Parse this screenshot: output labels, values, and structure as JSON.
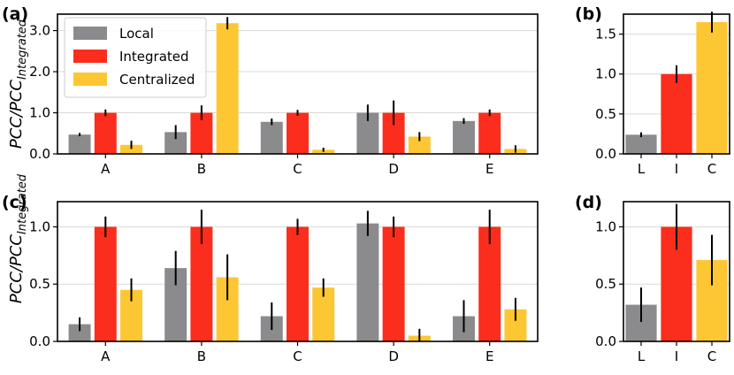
{
  "figure": {
    "ylabel_main": "PCC/PCC",
    "ylabel_sub": "Integrated"
  },
  "colors": {
    "Local": "#8b8b8e",
    "Integrated": "#fb2d1c",
    "Centralized": "#fdc633"
  },
  "chart_data": [
    {
      "panel": "(a)",
      "type": "bar",
      "categories": [
        "A",
        "B",
        "C",
        "D",
        "E"
      ],
      "ylim": [
        0,
        3.4
      ],
      "yticks": [
        0.0,
        1.0,
        2.0,
        3.0
      ],
      "ytick_labels": [
        "0.0",
        "1.0",
        "2.0",
        "3.0"
      ],
      "grid": true,
      "legend": "top-left",
      "series": [
        {
          "name": "Local",
          "values": [
            0.47,
            0.53,
            0.78,
            1.0,
            0.8
          ],
          "errors": [
            0.04,
            0.17,
            0.08,
            0.2,
            0.07
          ]
        },
        {
          "name": "Integrated",
          "values": [
            1.0,
            1.0,
            1.0,
            1.0,
            1.0
          ],
          "errors": [
            0.08,
            0.18,
            0.07,
            0.3,
            0.08
          ]
        },
        {
          "name": "Centralized",
          "values": [
            0.22,
            3.18,
            0.1,
            0.42,
            0.12
          ],
          "errors": [
            0.1,
            0.15,
            0.05,
            0.11,
            0.09
          ]
        }
      ]
    },
    {
      "panel": "(b)",
      "type": "bar",
      "categories": [
        "L",
        "I",
        "C"
      ],
      "ylim": [
        0,
        1.75
      ],
      "yticks": [
        0.0,
        0.5,
        1.0,
        1.5
      ],
      "ytick_labels": [
        "0.0",
        "0.5",
        "1.0",
        "1.5"
      ],
      "grid": true,
      "values": [
        0.24,
        1.0,
        1.65
      ],
      "errors": [
        0.03,
        0.11,
        0.13
      ],
      "bar_colors": [
        "Local",
        "Integrated",
        "Centralized"
      ]
    },
    {
      "panel": "(c)",
      "type": "bar",
      "categories": [
        "A",
        "B",
        "C",
        "D",
        "E"
      ],
      "ylim": [
        0,
        1.22
      ],
      "yticks": [
        0.0,
        0.5,
        1.0
      ],
      "ytick_labels": [
        "0.0",
        "0.5",
        "1.0"
      ],
      "grid": true,
      "series": [
        {
          "name": "Local",
          "values": [
            0.15,
            0.64,
            0.22,
            1.03,
            0.22
          ],
          "errors": [
            0.06,
            0.15,
            0.12,
            0.11,
            0.14
          ]
        },
        {
          "name": "Integrated",
          "values": [
            1.0,
            1.0,
            1.0,
            1.0,
            1.0
          ],
          "errors": [
            0.09,
            0.15,
            0.07,
            0.09,
            0.15
          ]
        },
        {
          "name": "Centralized",
          "values": [
            0.45,
            0.56,
            0.47,
            0.05,
            0.28
          ],
          "errors": [
            0.1,
            0.2,
            0.08,
            0.06,
            0.1
          ]
        }
      ]
    },
    {
      "panel": "(d)",
      "type": "bar",
      "categories": [
        "L",
        "I",
        "C"
      ],
      "ylim": [
        0,
        1.22
      ],
      "yticks": [
        0.0,
        0.5,
        1.0
      ],
      "ytick_labels": [
        "0.0",
        "0.5",
        "1.0"
      ],
      "grid": true,
      "values": [
        0.32,
        1.0,
        0.71
      ],
      "errors": [
        0.15,
        0.2,
        0.22
      ],
      "bar_colors": [
        "Local",
        "Integrated",
        "Centralized"
      ]
    }
  ]
}
